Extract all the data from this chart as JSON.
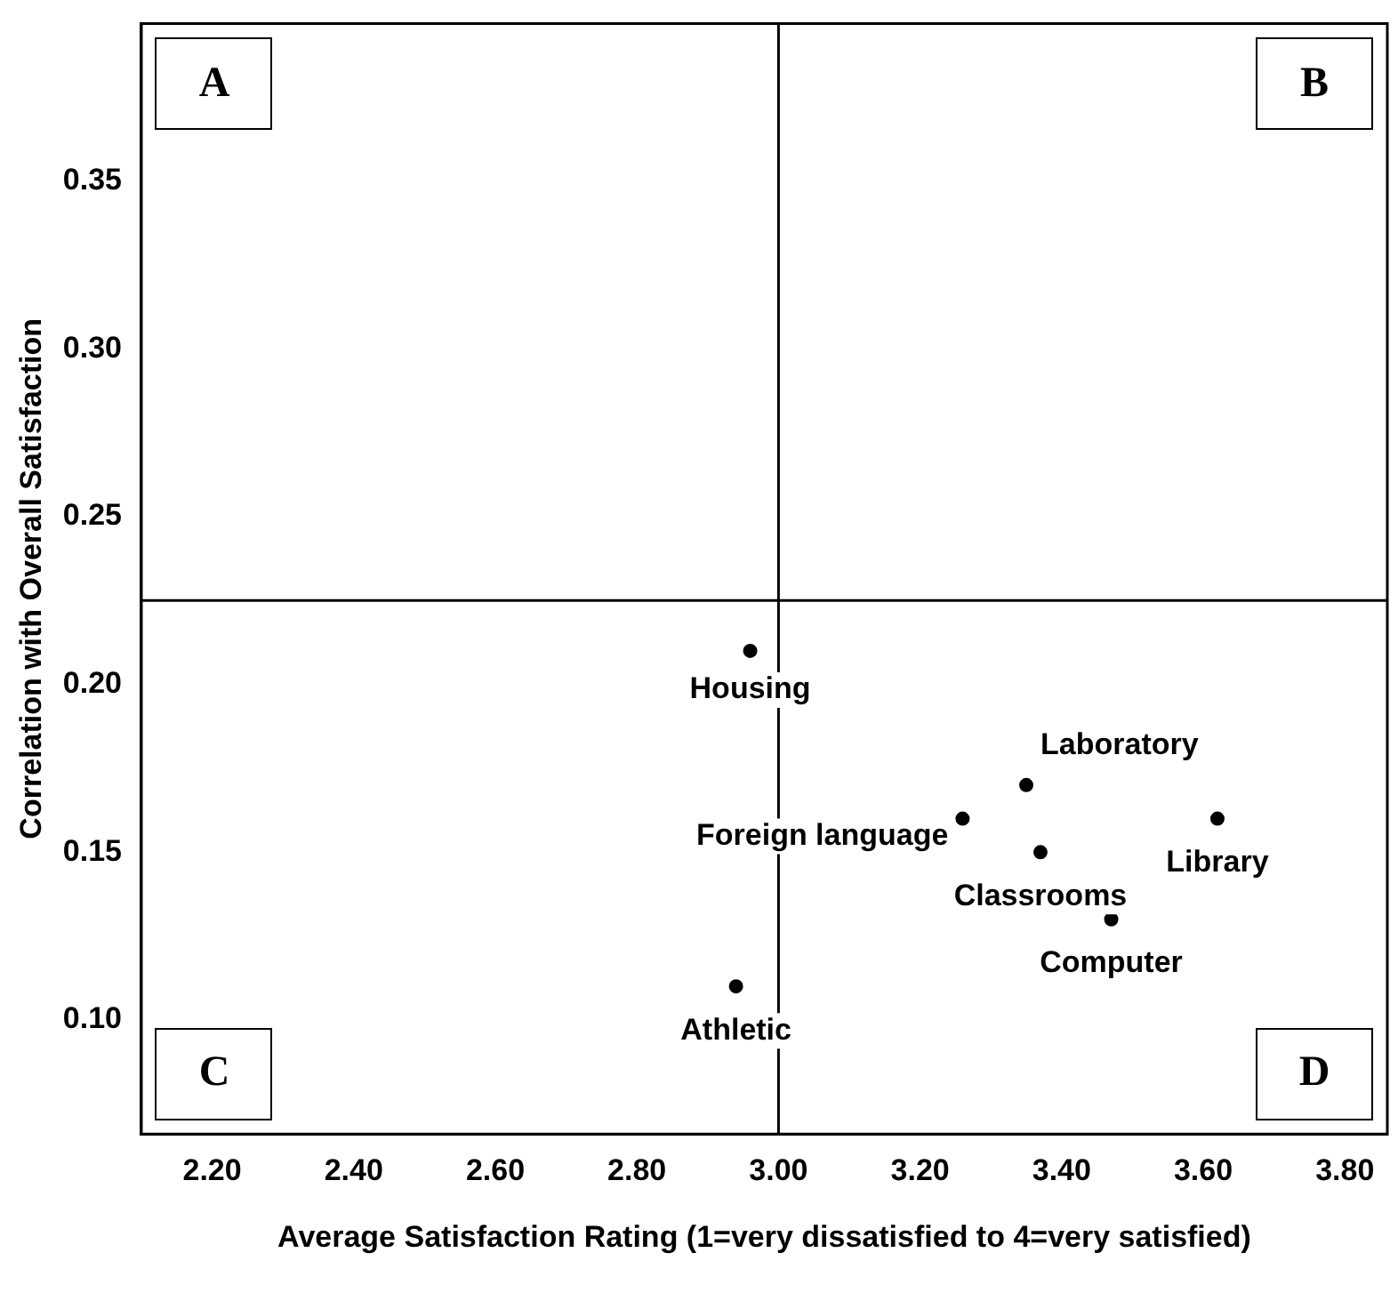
{
  "chart_data": {
    "type": "scatter",
    "xlabel": "Average Satisfaction Rating (1=very dissatisfied to 4=very satisfied)",
    "ylabel": "Correlation with Overall Satisfaction",
    "x": [
      2.96,
      3.35,
      3.26,
      3.37,
      3.62,
      3.47,
      2.94
    ],
    "series": [
      {
        "color": "#000000",
        "values": [
          0.21,
          0.17,
          0.16,
          0.15,
          0.16,
          0.13,
          0.11
        ]
      }
    ],
    "marker": "circle",
    "grid": false,
    "legend": false,
    "xlim": [
      2.1,
      3.86
    ],
    "ylim": [
      0.066,
      0.397
    ],
    "xticks": [
      {
        "value": 2.2,
        "label": "2.20"
      },
      {
        "value": 2.4,
        "label": "2.40"
      },
      {
        "value": 2.6,
        "label": "2.60"
      },
      {
        "value": 2.8,
        "label": "2.80"
      },
      {
        "value": 3.0,
        "label": "3.00"
      },
      {
        "value": 3.2,
        "label": "3.20"
      },
      {
        "value": 3.4,
        "label": "3.40"
      },
      {
        "value": 3.6,
        "label": "3.60"
      },
      {
        "value": 3.8,
        "label": "3.80"
      }
    ],
    "yticks": [
      {
        "value": 0.1,
        "label": "0.10"
      },
      {
        "value": 0.15,
        "label": "0.15"
      },
      {
        "value": 0.2,
        "label": "0.20"
      },
      {
        "value": 0.25,
        "label": "0.25"
      },
      {
        "value": 0.3,
        "label": "0.30"
      },
      {
        "value": 0.35,
        "label": "0.35"
      }
    ],
    "ref_lines": [
      {
        "axis": "x",
        "value": 3.0,
        "color": "#000000"
      },
      {
        "axis": "y",
        "value": 0.225,
        "color": "#000000"
      }
    ],
    "annotations": [
      {
        "text": "Housing",
        "x": 2.96,
        "y": 0.21
      },
      {
        "text": "Laboratory",
        "x": 3.35,
        "y": 0.17
      },
      {
        "text": "Foreign language",
        "x": 3.26,
        "y": 0.16
      },
      {
        "text": "Classrooms",
        "x": 3.37,
        "y": 0.15
      },
      {
        "text": "Library",
        "x": 3.62,
        "y": 0.16
      },
      {
        "text": "Computer",
        "x": 3.47,
        "y": 0.13
      },
      {
        "text": "Athletic",
        "x": 2.94,
        "y": 0.11
      },
      "A",
      "B",
      "C",
      "D"
    ]
  }
}
